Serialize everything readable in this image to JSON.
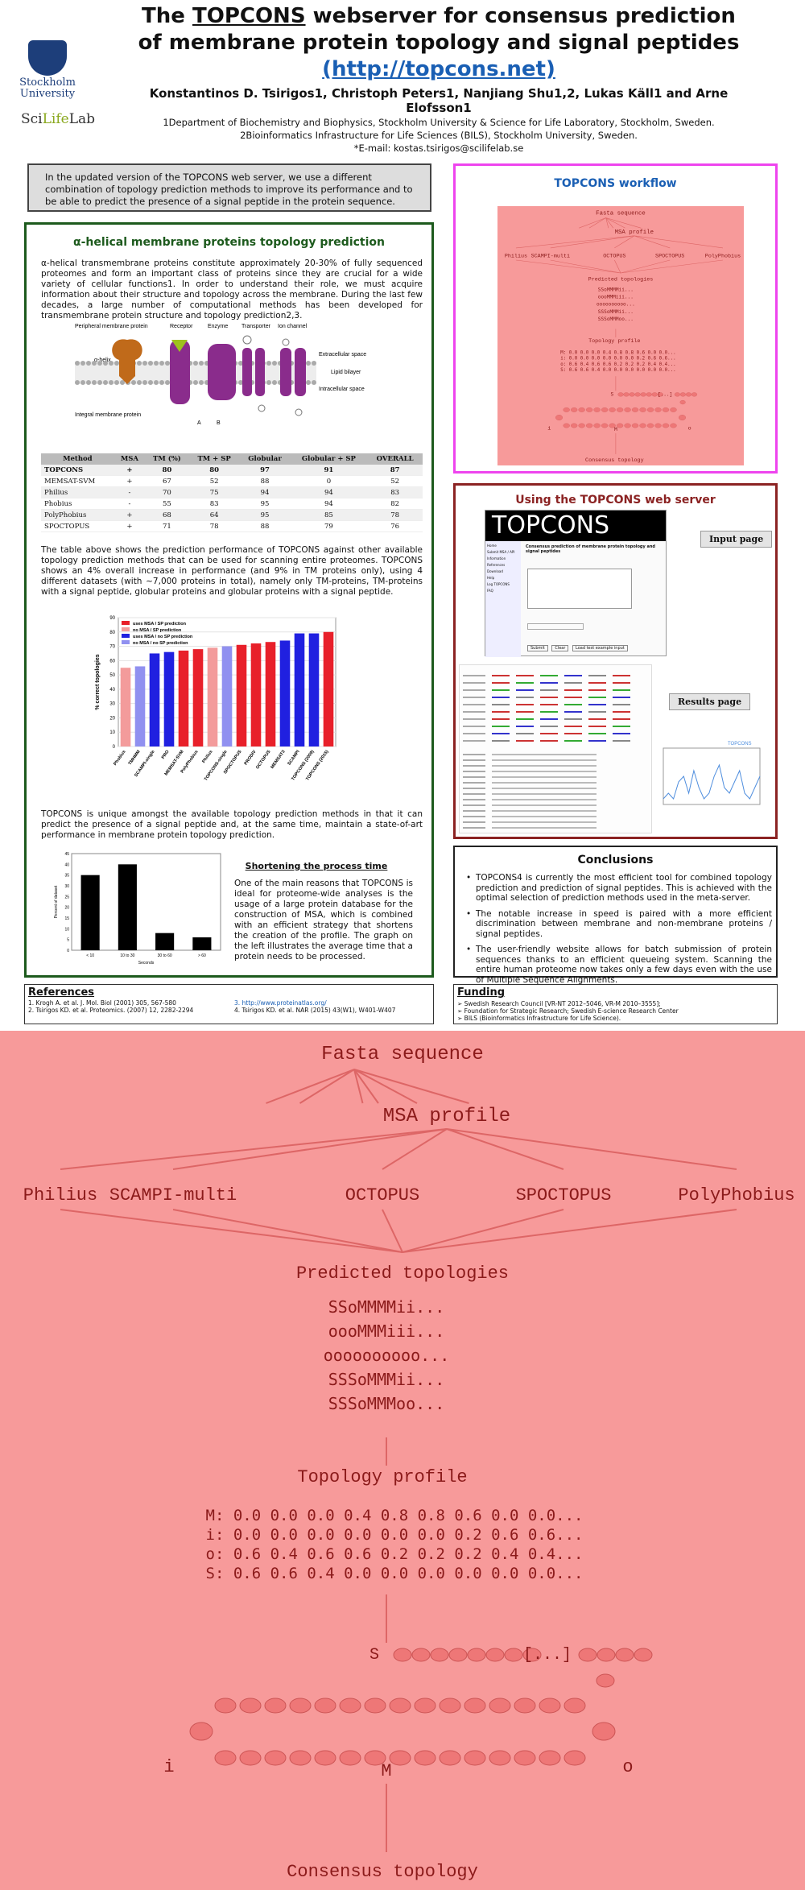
{
  "header": {
    "title_line1_pre": "The ",
    "title_topcons": "TOPCONS",
    "title_line1_post": " webserver for consensus prediction",
    "title_line2": "of membrane protein topology and signal peptides",
    "url": "(http://topcons.net)",
    "authors": "Konstantinos D. Tsirigos1, Christoph Peters1, Nanjiang Shu1,2, Lukas Käll1 and Arne Elofsson1",
    "affiliation1": "1Department of Biochemistry and Biophysics, Stockholm University & Science for Life Laboratory, Stockholm, Sweden.",
    "affiliation2": "2Bioinformatics Infrastructure for Life Sciences (BILS), Stockholm University, Sweden.",
    "email": "*E-mail: kostas.tsirigos@scilifelab.se",
    "logo_su_line1": "Stockholm",
    "logo_su_line2": "University",
    "logo_scilife_a": "Sci",
    "logo_scilife_b": "Life",
    "logo_scilife_c": "Lab"
  },
  "intro": {
    "text": "In the updated version of the TOPCONS web server, we use a different combination of topology prediction methods to improve its performance and to be able to predict the presence of a signal peptide in the protein sequence."
  },
  "alpha": {
    "title": "α-helical membrane proteins topology prediction",
    "para1": "α-helical transmembrane proteins constitute approximately 20-30% of fully sequenced proteomes and form an important class of proteins since they are crucial for a wide variety of cellular functions1. In order to understand their role, we must acquire information about their structure and topology across the membrane. During the last few decades, a large number of computational methods has been developed for transmembrane protein structure and topology prediction2,3.",
    "illus": {
      "peripheral": "Peripheral membrane protein",
      "receptor": "Receptor",
      "enzyme": "Enzyme",
      "transporter": "Transporter",
      "ion_channel": "Ion channel",
      "alpha_helix": "α-helix",
      "extracellular": "Extracellular space",
      "lipid_bilayer": "Lipid bilayer",
      "intracellular": "Intracellular space",
      "integral": "Integral membrane protein",
      "a": "A",
      "b": "B"
    },
    "table_headers": [
      "Method",
      "MSA",
      "TM (%)",
      "TM + SP",
      "Globular",
      "Globular + SP",
      "OVERALL"
    ],
    "table_rows": [
      [
        "TOPCONS",
        "+",
        "80",
        "80",
        "97",
        "91",
        "87"
      ],
      [
        "MEMSAT-SVM",
        "+",
        "67",
        "52",
        "88",
        "0",
        "52"
      ],
      [
        "Philius",
        "-",
        "70",
        "75",
        "94",
        "94",
        "83"
      ],
      [
        "Phobius",
        "-",
        "55",
        "83",
        "95",
        "94",
        "82"
      ],
      [
        "PolyPhobius",
        "+",
        "68",
        "64",
        "95",
        "85",
        "78"
      ],
      [
        "SPOCTOPUS",
        "+",
        "71",
        "78",
        "88",
        "79",
        "76"
      ]
    ],
    "para2": "The table above shows the prediction performance of TOPCONS against other available topology prediction methods that can be used for scanning entire proteomes. TOPCONS shows an 4% overall increase in performance (and 9% in TM proteins only), using 4 different datasets (with ~7,000 proteins in total), namely only TM-proteins, TM-proteins with a signal peptide, globular proteins and globular proteins with a signal peptide.",
    "para3": "TOPCONS is unique amongst the available topology prediction methods in that it can predict the presence of a signal peptide and, at the same time, maintain a state-of-art performance in membrane protein topology prediction.",
    "short_title": "Shortening the process time",
    "short_text": "One of the main reasons that TOPCONS is ideal for proteome-wide analyses is the usage of a large protein database for the construction of MSA, which is combined with an efficient strategy that shortens the creation of the profile. The graph on the left illustrates the average time that a protein needs to be processed."
  },
  "chart_data": [
    {
      "type": "bar",
      "ylabel": "% correct topologies",
      "ylim": [
        0,
        90
      ],
      "yticks": [
        0,
        10,
        20,
        30,
        40,
        50,
        60,
        70,
        80,
        90
      ],
      "legend": [
        "uses MSA / SP prediction",
        "no MSA / SP prediction",
        "uses MSA / no SP prediction",
        "no MSA / no SP prediction"
      ],
      "legend_colors": [
        "#e8202a",
        "#f39b9b",
        "#2020e0",
        "#9090f0"
      ],
      "categories": [
        "Phobius",
        "TMHMM",
        "SCAMPI-single",
        "PRO",
        "MEMSAT-SVM",
        "PolyPhobius",
        "Philius",
        "TOPCONS-single",
        "SPOCTOPUS",
        "PRODIV",
        "OCTOPUS",
        "MEMSAT3",
        "SCAMPI",
        "TOPCONS (2009)",
        "TOPCONS (2015)"
      ],
      "values": [
        55,
        56,
        65,
        66,
        67,
        68,
        69,
        70,
        71,
        72,
        73,
        74,
        79,
        79,
        80
      ],
      "color_index": [
        1,
        3,
        2,
        2,
        0,
        0,
        1,
        3,
        0,
        0,
        0,
        2,
        2,
        2,
        0
      ]
    },
    {
      "type": "bar",
      "xlabel": "Seconds",
      "ylabel": "Percent of dataset",
      "ylim": [
        0,
        45
      ],
      "yticks": [
        0,
        5,
        10,
        15,
        20,
        25,
        30,
        35,
        40,
        45
      ],
      "categories": [
        "< 10",
        "10 to 30",
        "30 to 60",
        "> 60"
      ],
      "values": [
        35,
        40,
        8,
        6
      ]
    },
    {
      "type": "line",
      "series": [
        {
          "name": "TOPCONS",
          "color": "#4f8ede",
          "values": [
            0.1,
            0.2,
            0.1,
            0.4,
            0.5,
            0.2,
            0.6,
            0.3,
            0.1,
            0.2,
            0.5,
            0.7,
            0.3,
            0.2,
            0.4,
            0.6,
            0.2,
            0.1,
            0.3,
            0.5
          ]
        }
      ]
    }
  ],
  "workflow": {
    "title": "TOPCONS workflow",
    "fasta": "Fasta sequence",
    "msa": "MSA profile",
    "methods": [
      "Philius",
      "SCAMPI-multi",
      "OCTOPUS",
      "SPOCTOPUS",
      "PolyPhobius"
    ],
    "predicted": "Predicted topologies",
    "topologies": [
      "SSoMMMMii...",
      "oooMMMiii...",
      "oooooooooo...",
      "SSSoMMMii...",
      "SSSoMMMoo..."
    ],
    "profile_title": "Topology profile",
    "profile_rows": [
      "M: 0.0 0.0 0.0 0.4 0.8 0.8 0.6 0.0 0.0...",
      "i: 0.0 0.0 0.0 0.0 0.0 0.0 0.2 0.6 0.6...",
      "o: 0.6 0.4 0.6 0.6 0.2 0.2 0.2 0.4 0.4...",
      "S: 0.6 0.6 0.4 0.0 0.0 0.0 0.0 0.0 0.0..."
    ],
    "state_s": "S",
    "state_dots": "[...]",
    "state_i": "i",
    "state_m": "M",
    "state_o": "o",
    "consensus": "Consensus topology"
  },
  "using": {
    "title": "Using the TOPCONS web server",
    "input_logo": "TOPCONS",
    "input_heading": "Consensus prediction of membrane protein topology and signal peptides",
    "input_label": "Input page",
    "results_label": "Results page",
    "sidebar_items": [
      "Home",
      "Submit MSA / API",
      "Information",
      "References",
      "Download",
      "Help",
      "Log TOPCONS",
      "FAQ"
    ],
    "buttons": [
      "Submit",
      "Clear",
      "Load test example input"
    ]
  },
  "conclusions": {
    "title": "Conclusions",
    "item1": "TOPCONS4 is currently the most efficient tool for combined topology prediction and prediction of signal peptides. This is achieved with the optimal selection of prediction methods used in the meta-server.",
    "item2": "The notable increase in speed is paired with a more efficient discrimination between membrane and non-membrane proteins / signal peptides.",
    "item3": "The user-friendly website allows for batch submission of protein sequences thanks to an efficient queueing system. Scanning the entire human proteome now takes only a few days even with the use of Multiple Sequence Alignments."
  },
  "references": {
    "title": "References",
    "r1": "1. Krogh A. et al. J. Mol. Biol (2001) 305, 567-580",
    "r2": "2. Tsirigos KD. et al. Proteomics. (2007) 12, 2282-2294",
    "r3": "3. http://www.proteinatlas.org/",
    "r4": "4. Tsirigos KD. et al. NAR (2015) 43(W1), W401-W407"
  },
  "funding": {
    "title": "Funding",
    "f1": "➢ Swedish Research Council [VR-NT 2012–5046, VR-M 2010–3555];",
    "f2": "➢ Foundation for Strategic Research; Swedish E-science Research Center",
    "f3": "➢ BILS (Bioinformatics Infrastructure for Life Science)."
  },
  "colors": {
    "green": "#1d5a1d",
    "blue_link": "#1a5fb4",
    "magenta": "#ee44ee",
    "brown": "#8b2323",
    "workflow_bg": "#f79a9a",
    "workflow_ink": "#8b1a1a"
  }
}
